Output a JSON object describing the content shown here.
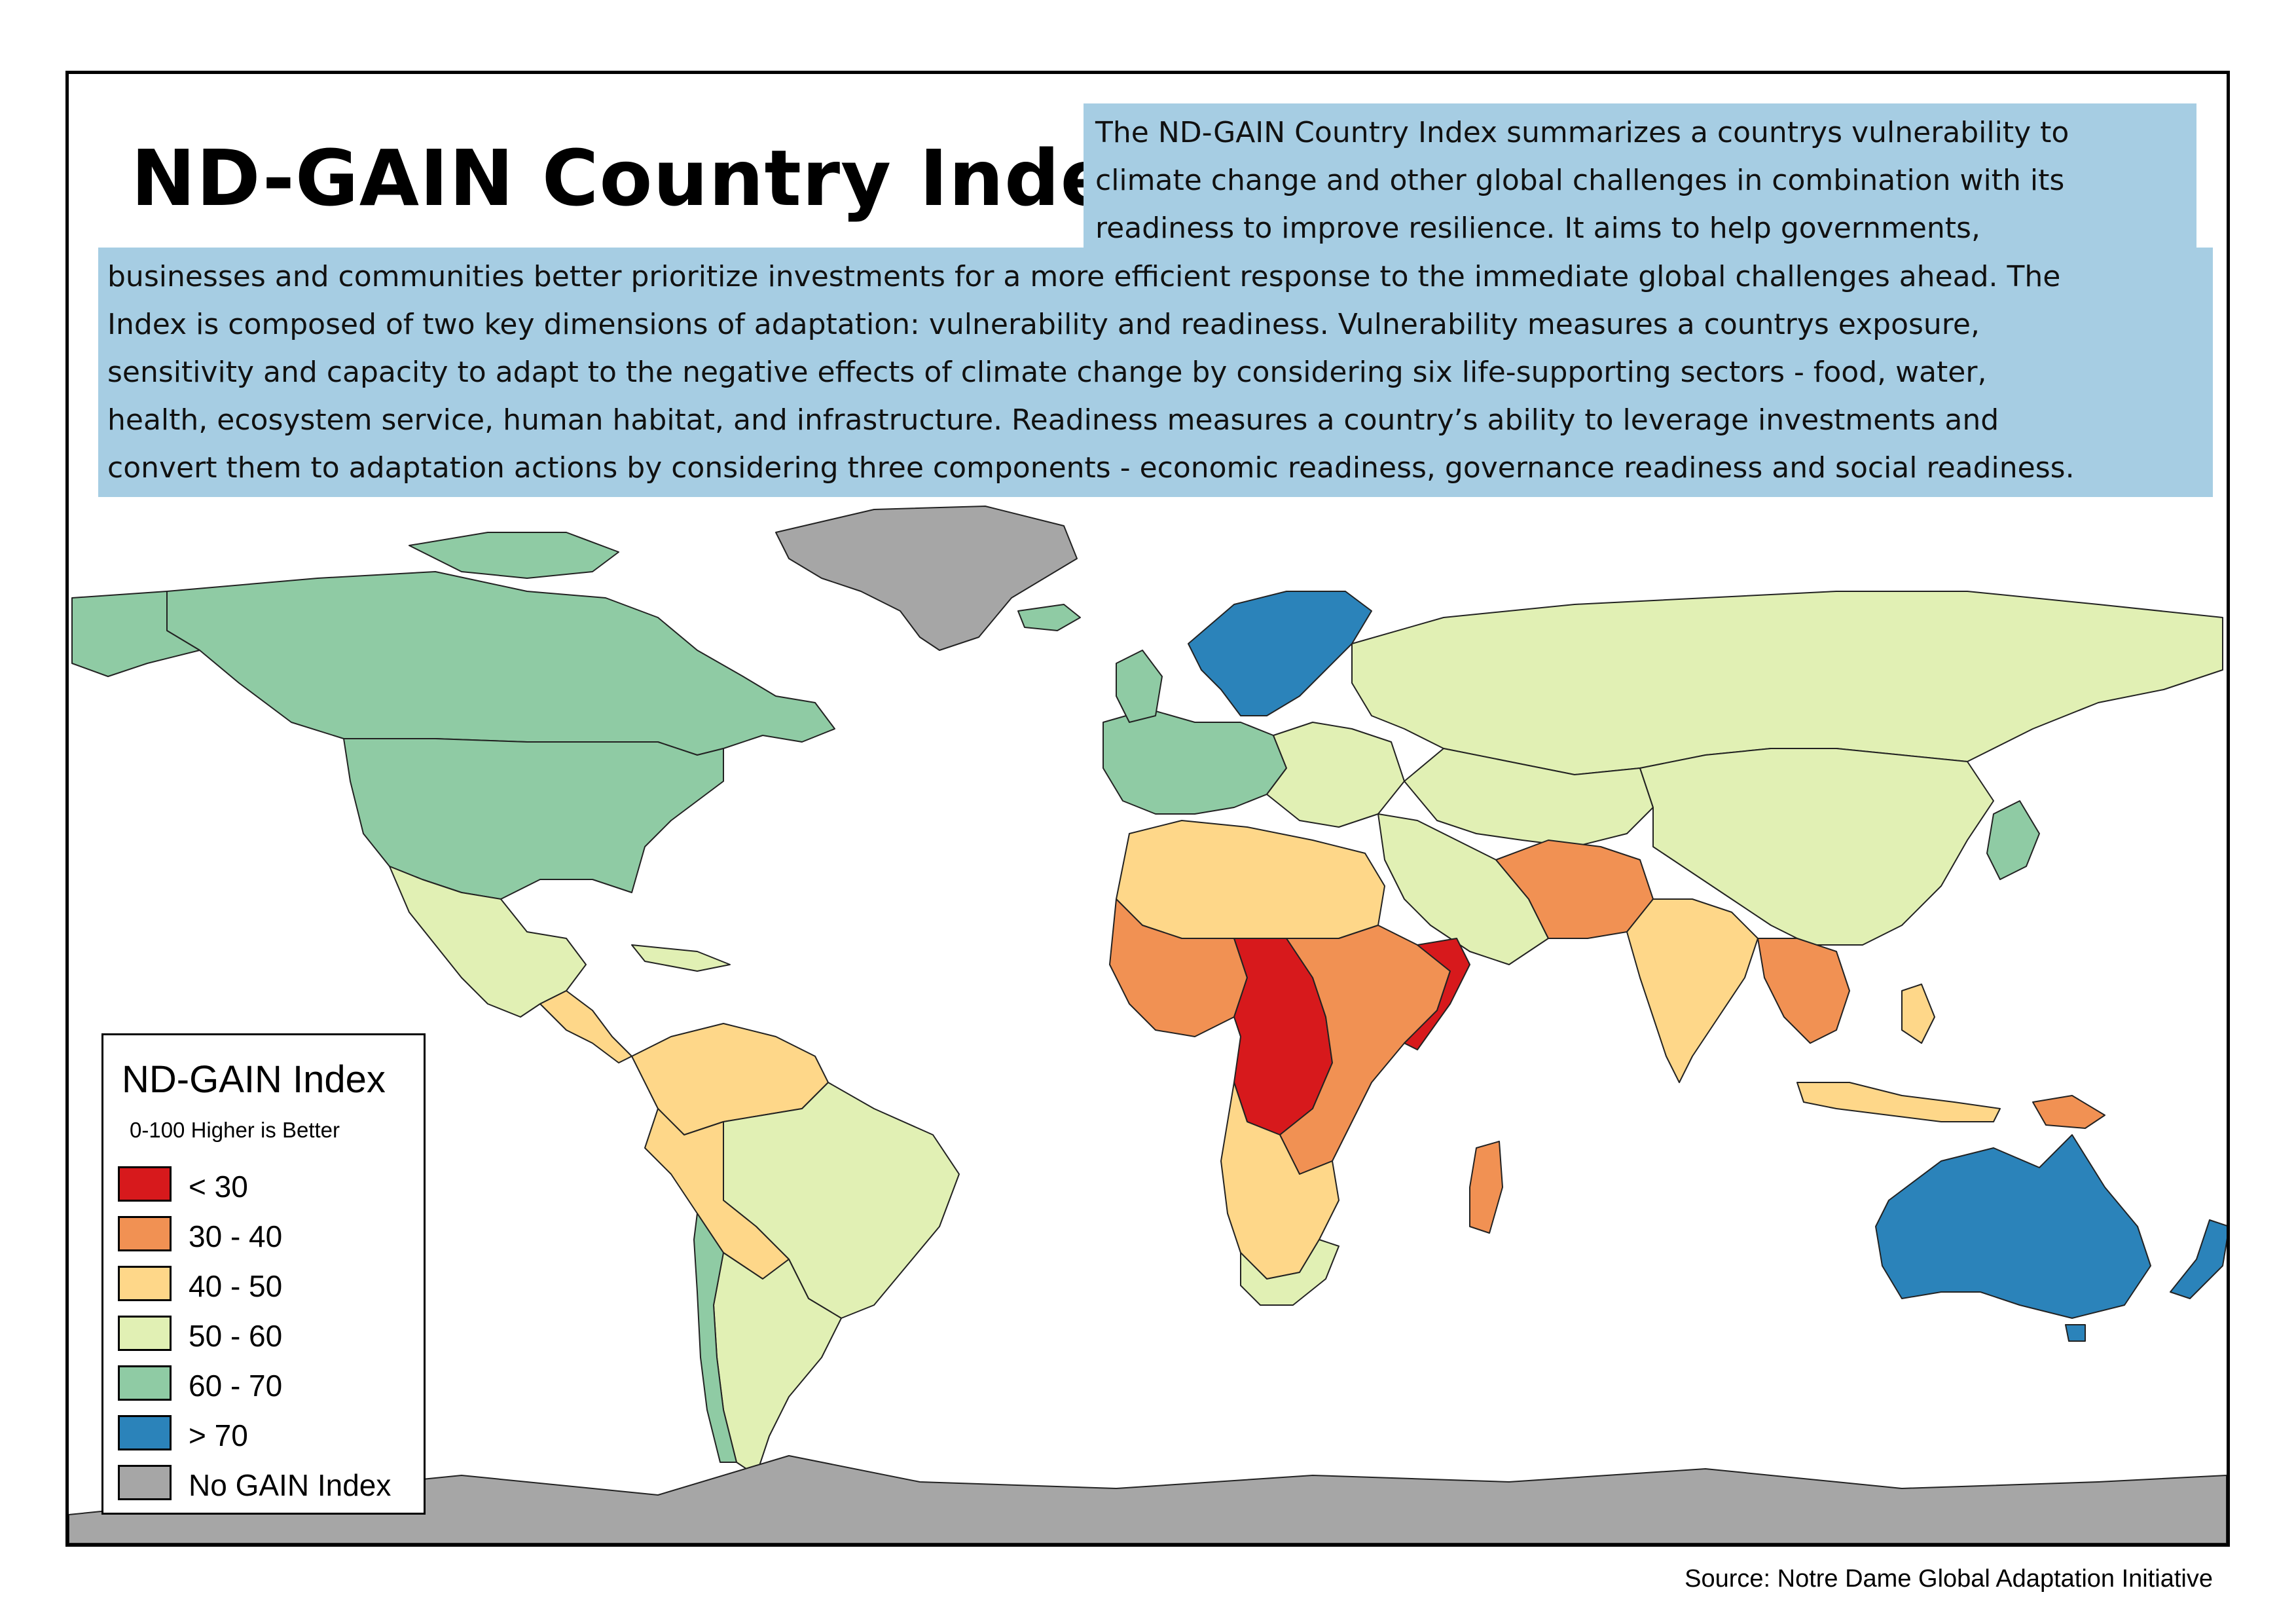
{
  "title": "ND-GAIN Country Index",
  "description": {
    "top_lines": [
      "The ND-GAIN Country Index summarizes a countrys vulnerability  to",
      "climate change and other global challenges in combination with its",
      "readiness to improve resilience. It aims to help governments,"
    ],
    "body_lines": [
      "businesses and communities better prioritize investments for a more efficient response to the immediate global challenges ahead. The",
      "Index is composed of two key dimensions of adaptation: vulnerability and readiness. Vulnerability measures a countrys exposure,",
      "sensitivity and capacity to adapt to the negative effects of climate change by considering six life-supporting sectors - food, water,",
      "health, ecosystem service, human habitat, and infrastructure. Readiness measures a country’s ability to leverage investments and",
      "convert them to adaptation actions by considering three components - economic readiness, governance readiness and social readiness."
    ]
  },
  "legend": {
    "title": "ND-GAIN Index",
    "subtitle": "0-100 Higher is Better",
    "items": [
      {
        "label": "< 30",
        "color": "#d7191c"
      },
      {
        "label": "30 - 40",
        "color": "#f19153"
      },
      {
        "label": "40 - 50",
        "color": "#fed789"
      },
      {
        "label": "50 - 60",
        "color": "#e1f0b4"
      },
      {
        "label": "60 - 70",
        "color": "#8fcba4"
      },
      {
        "label": "> 70",
        "color": "#2b83ba"
      },
      {
        "label": "No GAIN Index",
        "color": "#a6a6a6"
      }
    ]
  },
  "source": "Source: Notre Dame Global Adaptation Initiative"
}
